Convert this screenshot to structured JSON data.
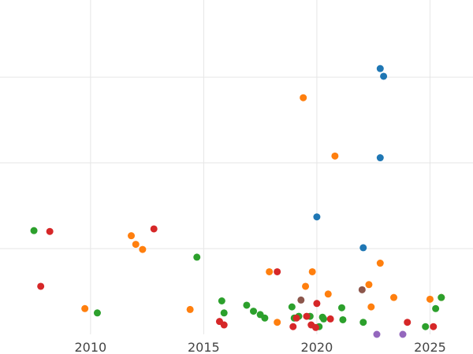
{
  "chart_data": {
    "type": "scatter",
    "title": "",
    "xlabel": "",
    "ylabel": "",
    "grid": true,
    "legend": "none",
    "xlim": [
      2006.0,
      2026.9
    ],
    "ylim": [
      0.0,
      39.0
    ],
    "x_ticks": [
      {
        "value": 2010,
        "label": "2010"
      },
      {
        "value": 2015,
        "label": "2015"
      },
      {
        "value": 2020,
        "label": "2020"
      },
      {
        "value": 2025,
        "label": "2025"
      }
    ],
    "y_gridlines": [
      10,
      20,
      30
    ],
    "series": [
      {
        "color": "#1f77b4",
        "points": [
          [
            2022.8,
            31.0
          ],
          [
            2022.95,
            30.1
          ],
          [
            2022.8,
            20.6
          ],
          [
            2020.0,
            13.7
          ],
          [
            2022.05,
            10.1
          ]
        ]
      },
      {
        "color": "#ff7f0e",
        "points": [
          [
            2019.4,
            27.6
          ],
          [
            2020.8,
            20.8
          ],
          [
            2011.8,
            11.5
          ],
          [
            2012.0,
            10.5
          ],
          [
            2012.3,
            9.9
          ],
          [
            2017.9,
            7.3
          ],
          [
            2019.8,
            7.3
          ],
          [
            2022.8,
            8.3
          ],
          [
            2019.5,
            5.6
          ],
          [
            2020.5,
            4.7
          ],
          [
            2022.3,
            5.8
          ],
          [
            2023.4,
            4.3
          ],
          [
            2025.0,
            4.1
          ],
          [
            2025.5,
            4.3
          ],
          [
            2022.4,
            3.2
          ],
          [
            2009.75,
            3.0
          ],
          [
            2014.4,
            2.9
          ],
          [
            2018.25,
            1.4
          ]
        ]
      },
      {
        "color": "#2ca02c",
        "points": [
          [
            2007.5,
            12.1
          ],
          [
            2014.7,
            9.0
          ],
          [
            2010.3,
            2.5
          ],
          [
            2015.8,
            3.9
          ],
          [
            2015.9,
            2.5
          ],
          [
            2016.9,
            3.4
          ],
          [
            2017.2,
            2.7
          ],
          [
            2017.5,
            2.3
          ],
          [
            2017.7,
            1.9
          ],
          [
            2018.9,
            3.2
          ],
          [
            2019.0,
            1.9
          ],
          [
            2019.2,
            2.1
          ],
          [
            2019.7,
            2.1
          ],
          [
            2020.1,
            0.9
          ],
          [
            2020.25,
            2.0
          ],
          [
            2020.3,
            1.8
          ],
          [
            2021.1,
            3.1
          ],
          [
            2021.15,
            1.7
          ],
          [
            2022.05,
            1.4
          ],
          [
            2024.8,
            0.9
          ],
          [
            2025.25,
            3.0
          ],
          [
            2025.5,
            4.3
          ]
        ]
      },
      {
        "color": "#d62728",
        "points": [
          [
            2008.2,
            12.0
          ],
          [
            2012.8,
            12.3
          ],
          [
            2007.8,
            5.6
          ],
          [
            2018.25,
            7.3
          ],
          [
            2020.0,
            3.6
          ],
          [
            2019.1,
            1.9
          ],
          [
            2019.55,
            2.1
          ],
          [
            2020.6,
            1.8
          ],
          [
            2019.75,
            1.1
          ],
          [
            2019.95,
            0.8
          ],
          [
            2018.95,
            0.9
          ],
          [
            2015.7,
            1.5
          ],
          [
            2015.9,
            1.1
          ],
          [
            2024.0,
            1.4
          ],
          [
            2025.15,
            0.9
          ]
        ]
      },
      {
        "color": "#9467bd",
        "points": [
          [
            2022.65,
            0.0
          ],
          [
            2023.8,
            0.0
          ]
        ]
      },
      {
        "color": "#8c564b",
        "points": [
          [
            2019.3,
            4.0
          ],
          [
            2022.0,
            5.2
          ]
        ]
      }
    ]
  }
}
